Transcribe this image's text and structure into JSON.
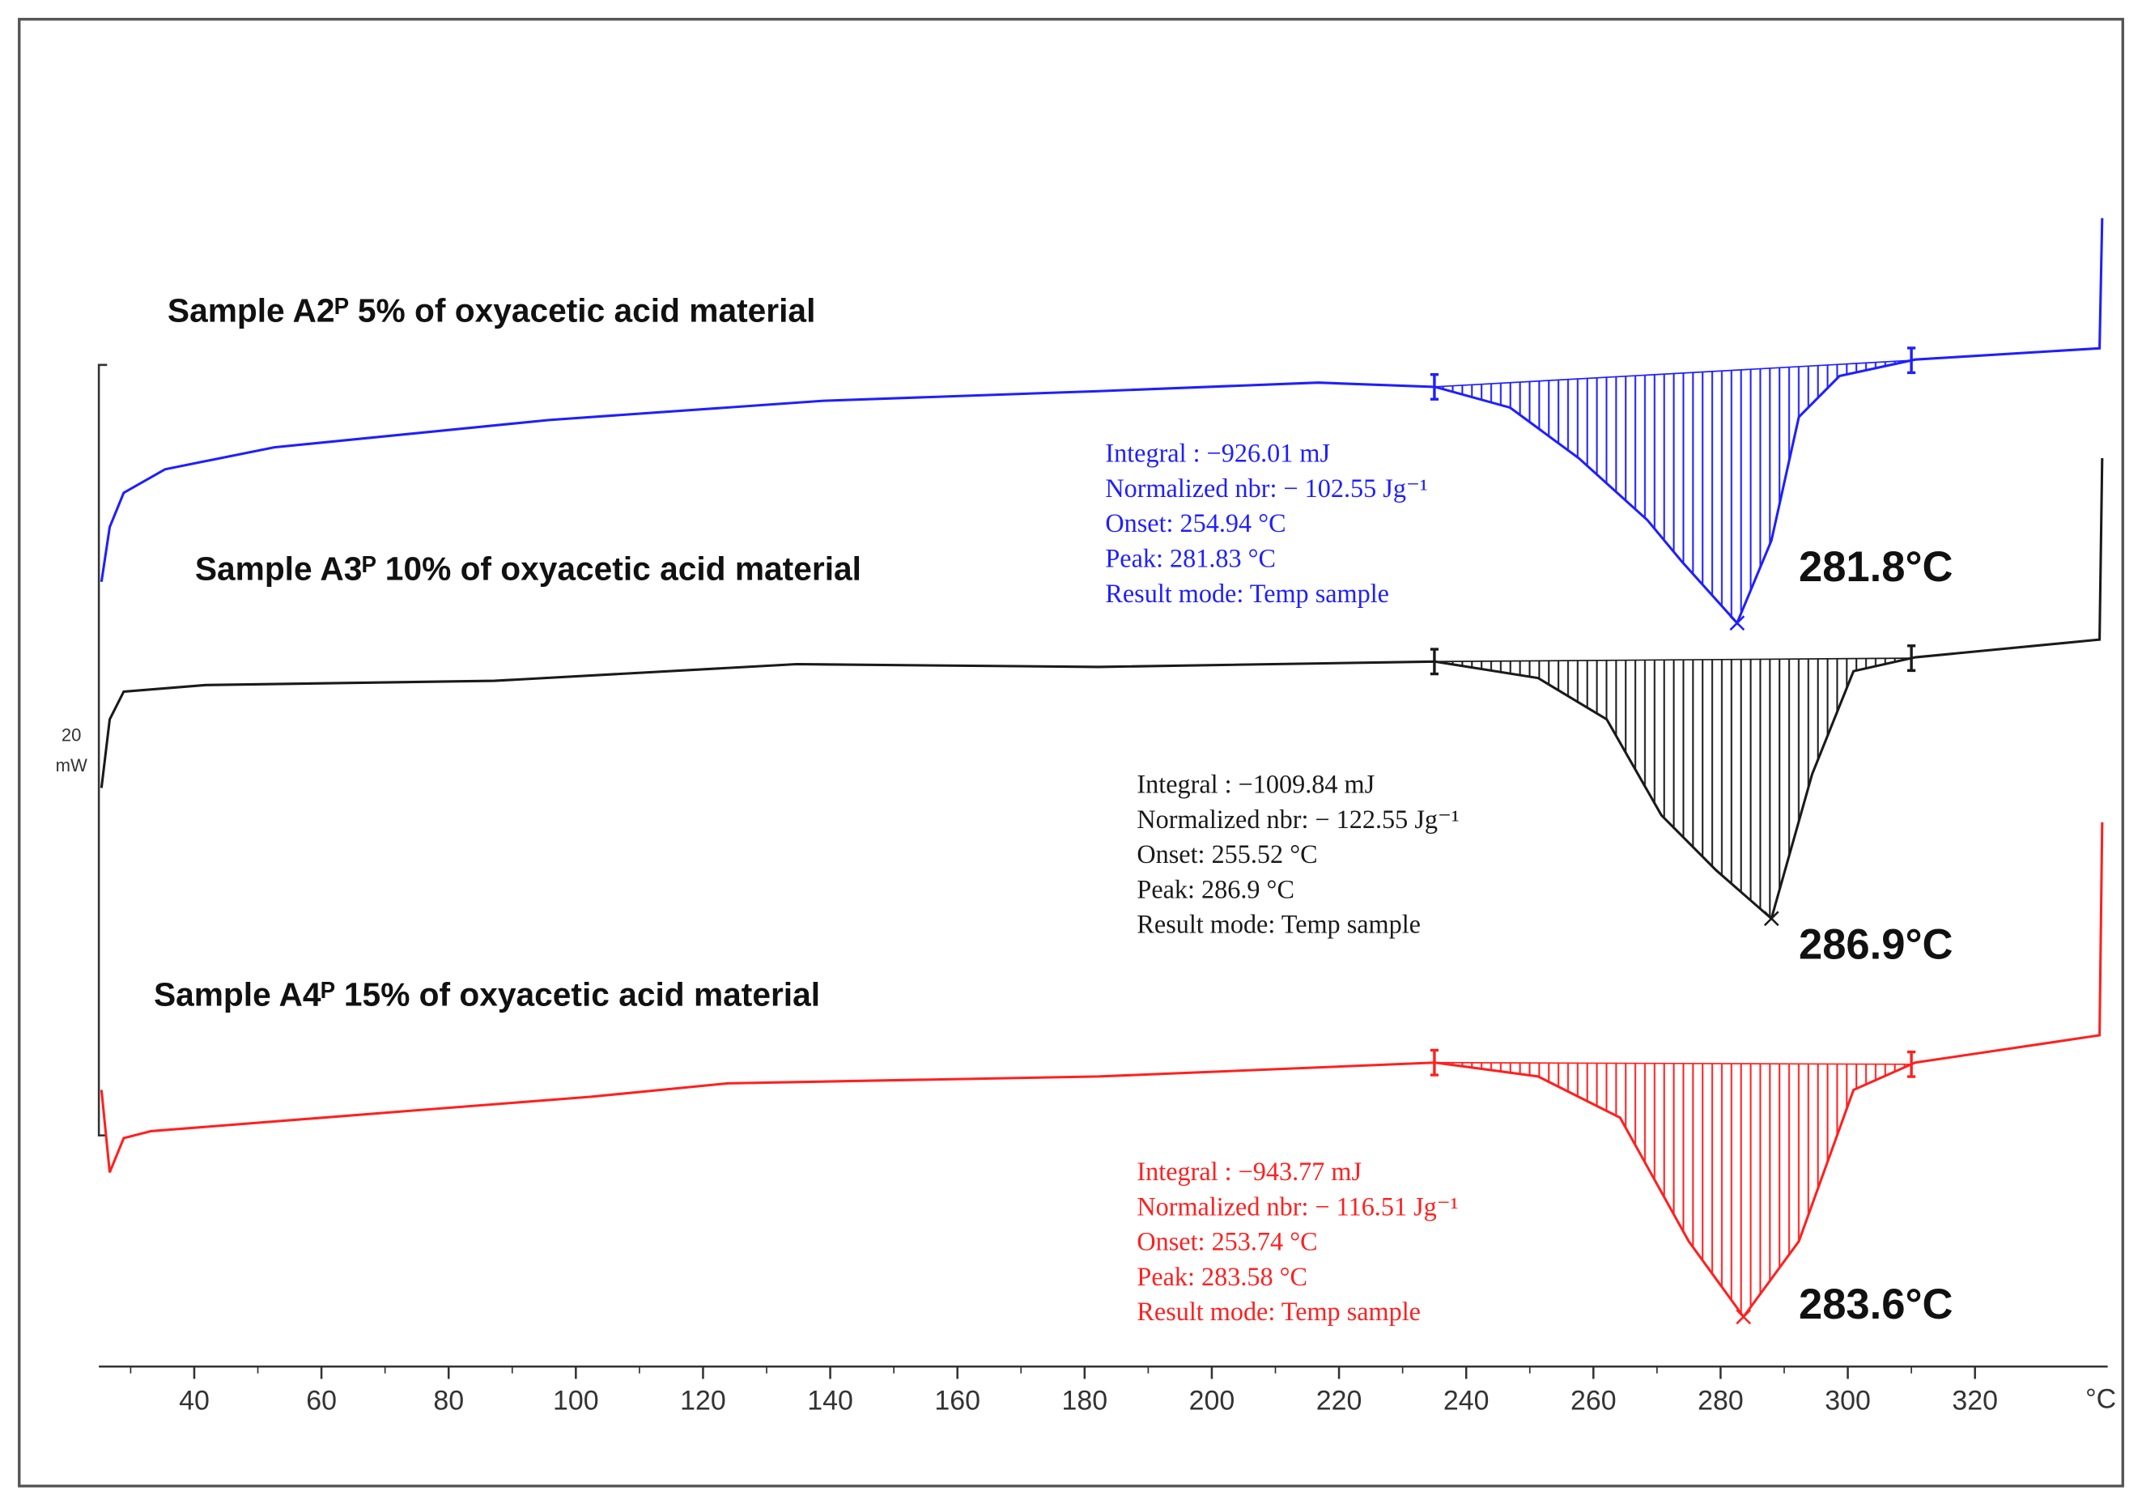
{
  "chart_data": {
    "type": "line",
    "xlabel": "°C",
    "xlim": [
      25,
      340
    ],
    "xticks": [
      40,
      60,
      80,
      100,
      120,
      140,
      160,
      180,
      200,
      220,
      240,
      260,
      280,
      300,
      320
    ],
    "ylim": [
      -6,
      26
    ],
    "scale_bar": {
      "value": 20,
      "unit": "mW"
    },
    "integration_limits": [
      235,
      310
    ],
    "series": [
      {
        "name": "Sample A2ᴾ 5% of oxyacetic acid material",
        "color": "#1f1fff",
        "x": [
          25.4,
          26.7,
          28.9,
          35.4,
          52.6,
          95.8,
          139.0,
          182.2,
          216.7,
          235.1,
          246.9,
          257.7,
          268.5,
          273.9,
          282.6,
          288.0,
          292.3,
          298.7,
          310.6,
          339.6,
          340.0
        ],
        "values": [
          14.37,
          15.79,
          16.68,
          17.29,
          17.86,
          18.57,
          19.07,
          19.32,
          19.54,
          19.43,
          18.89,
          17.58,
          15.97,
          14.9,
          13.3,
          15.44,
          18.65,
          19.71,
          20.14,
          20.43,
          23.81
        ],
        "annotation": [
          "Integral  :  −926.01 mJ",
          "Normalized nbr:   − 102.55 Jg⁻¹",
          "Onset:  254.94 °C",
          "Peak: 281.83 °C",
          "Result  mode:  Temp sample"
        ],
        "peak_label": "281.8°C"
      },
      {
        "name": "Sample A3ᴾ 10% of oxyacetic acid material",
        "color": "#1a1a1a",
        "x": [
          25.4,
          26.7,
          28.9,
          41.8,
          87.2,
          134.7,
          182.2,
          235.1,
          251.3,
          262.1,
          270.7,
          279.3,
          288.0,
          294.4,
          300.9,
          310.6,
          339.6,
          340.0
        ],
        "values": [
          9.02,
          10.8,
          11.52,
          11.69,
          11.8,
          12.23,
          12.16,
          12.3,
          11.87,
          10.8,
          8.31,
          6.88,
          5.63,
          9.38,
          12.05,
          12.41,
          12.87,
          17.58
        ],
        "annotation": [
          "Integral  :  −1009.84 mJ",
          "Normalized nbr:   − 122.55 Jg⁻¹",
          "Onset:  255.52 °C",
          "Peak: 286.9 °C",
          "Result  mode:  Temp sample"
        ],
        "peak_label": "286.9°C"
      },
      {
        "name": "Sample A4ᴾ 15% of oxyacetic acid material",
        "color": "#ff2020",
        "x": [
          25.4,
          26.7,
          28.9,
          33.2,
          74.2,
          102.3,
          123.9,
          182.2,
          235.1,
          251.3,
          264.2,
          275.0,
          283.6,
          292.3,
          300.9,
          310.6,
          339.6,
          340.0
        ],
        "values": [
          1.18,
          -0.96,
          -0.07,
          0.11,
          0.64,
          1.0,
          1.35,
          1.53,
          1.89,
          1.53,
          0.46,
          -2.75,
          -4.71,
          -2.75,
          1.18,
          1.89,
          2.6,
          8.13
        ],
        "annotation": [
          "Integral  :  −943.77 mJ",
          "Normalized nbr:   − 116.51 Jg⁻¹",
          "Onset:  253.74 °C",
          "Peak: 283.58 °C",
          "Result  mode:  Temp sample"
        ],
        "peak_label": "283.6°C"
      }
    ]
  }
}
